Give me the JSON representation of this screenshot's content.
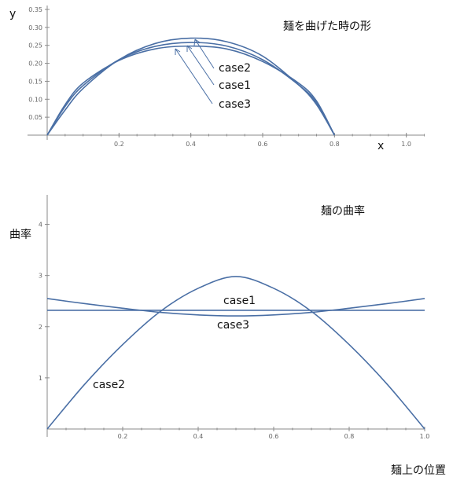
{
  "chart_data": [
    {
      "type": "line",
      "title": "麺を曲げた時の形",
      "xlabel": "x",
      "ylabel": "y",
      "xlim": [
        0,
        1.05
      ],
      "ylim": [
        0,
        0.35
      ],
      "x_ticks": [
        "0.2",
        "0.4",
        "0.6",
        "0.8",
        "1.0"
      ],
      "y_ticks": [
        "0.05",
        "0.10",
        "0.15",
        "0.20",
        "0.25",
        "0.30",
        "0.35"
      ],
      "series": [
        {
          "name": "case2",
          "color": "#4a6fa5",
          "x": [
            0,
            0.05,
            0.1,
            0.2,
            0.3,
            0.4,
            0.5,
            0.6,
            0.7,
            0.75,
            0.8
          ],
          "y": [
            0,
            0.07,
            0.13,
            0.21,
            0.255,
            0.27,
            0.26,
            0.22,
            0.14,
            0.085,
            0
          ]
        },
        {
          "name": "case1",
          "color": "#4a6fa5",
          "x": [
            0,
            0.05,
            0.1,
            0.2,
            0.3,
            0.4,
            0.5,
            0.6,
            0.7,
            0.75,
            0.8
          ],
          "y": [
            0,
            0.08,
            0.138,
            0.21,
            0.247,
            0.258,
            0.248,
            0.21,
            0.14,
            0.09,
            0
          ]
        },
        {
          "name": "case3",
          "color": "#4a6fa5",
          "x": [
            0,
            0.05,
            0.1,
            0.2,
            0.3,
            0.4,
            0.5,
            0.6,
            0.7,
            0.75,
            0.8
          ],
          "y": [
            0,
            0.085,
            0.145,
            0.208,
            0.24,
            0.248,
            0.24,
            0.205,
            0.145,
            0.095,
            0
          ]
        }
      ],
      "annotations": [
        "case2",
        "case1",
        "case3"
      ]
    },
    {
      "type": "line",
      "title": "麺の曲率",
      "xlabel": "麺上の位置",
      "ylabel": "曲率",
      "xlim": [
        0,
        1.0
      ],
      "ylim": [
        0,
        4.5
      ],
      "x_ticks": [
        "0.2",
        "0.4",
        "0.6",
        "0.8",
        "1.0"
      ],
      "y_ticks": [
        "1",
        "2",
        "3",
        "4"
      ],
      "series": [
        {
          "name": "case1",
          "color": "#4a6fa5",
          "x": [
            0,
            1.0
          ],
          "y": [
            2.32,
            2.32
          ]
        },
        {
          "name": "case2",
          "color": "#4a6fa5",
          "x": [
            0,
            0.1,
            0.2,
            0.3,
            0.4,
            0.5,
            0.6,
            0.7,
            0.8,
            0.9,
            1.0
          ],
          "y": [
            0,
            0.88,
            1.65,
            2.3,
            2.75,
            2.98,
            2.75,
            2.3,
            1.65,
            0.88,
            0
          ]
        },
        {
          "name": "case3",
          "color": "#4a6fa5",
          "x": [
            0,
            0.1,
            0.2,
            0.3,
            0.4,
            0.5,
            0.6,
            0.7,
            0.8,
            0.9,
            1.0
          ],
          "y": [
            2.55,
            2.45,
            2.36,
            2.28,
            2.23,
            2.21,
            2.23,
            2.28,
            2.36,
            2.45,
            2.55
          ]
        }
      ],
      "annotations": [
        "case1",
        "case3",
        "case2"
      ]
    }
  ]
}
